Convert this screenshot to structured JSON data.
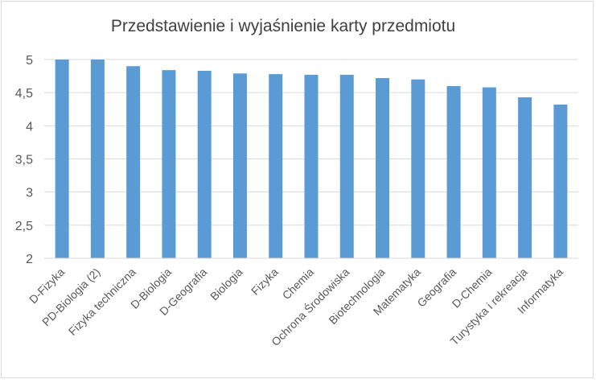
{
  "chart_data": {
    "type": "bar",
    "title": "Przedstawienie i wyjaśnienie karty przedmiotu",
    "xlabel": "",
    "ylabel": "",
    "ylim": [
      2,
      5
    ],
    "yticks": [
      2,
      2.5,
      3,
      3.5,
      4,
      4.5,
      5
    ],
    "ytick_labels": [
      "2",
      "2,5",
      "3",
      "3,5",
      "4",
      "4,5",
      "5"
    ],
    "grid": true,
    "legend": "none",
    "bar_color": "#5b9bd5",
    "categories": [
      "D-Fizyka",
      "PD-Biologia (2)",
      "Fizyka techniczna",
      "D-Biologia",
      "D-Geografia",
      "Biologia",
      "Fizyka",
      "Chemia",
      "Ochrona Środowiska",
      "Biotechnologia",
      "Matematyka",
      "Geografia",
      "D-Chemia",
      "Turystyka i rekreacja",
      "Informatyka"
    ],
    "values": [
      5.0,
      5.0,
      4.9,
      4.84,
      4.83,
      4.79,
      4.78,
      4.77,
      4.77,
      4.72,
      4.7,
      4.6,
      4.58,
      4.43,
      4.32
    ]
  }
}
